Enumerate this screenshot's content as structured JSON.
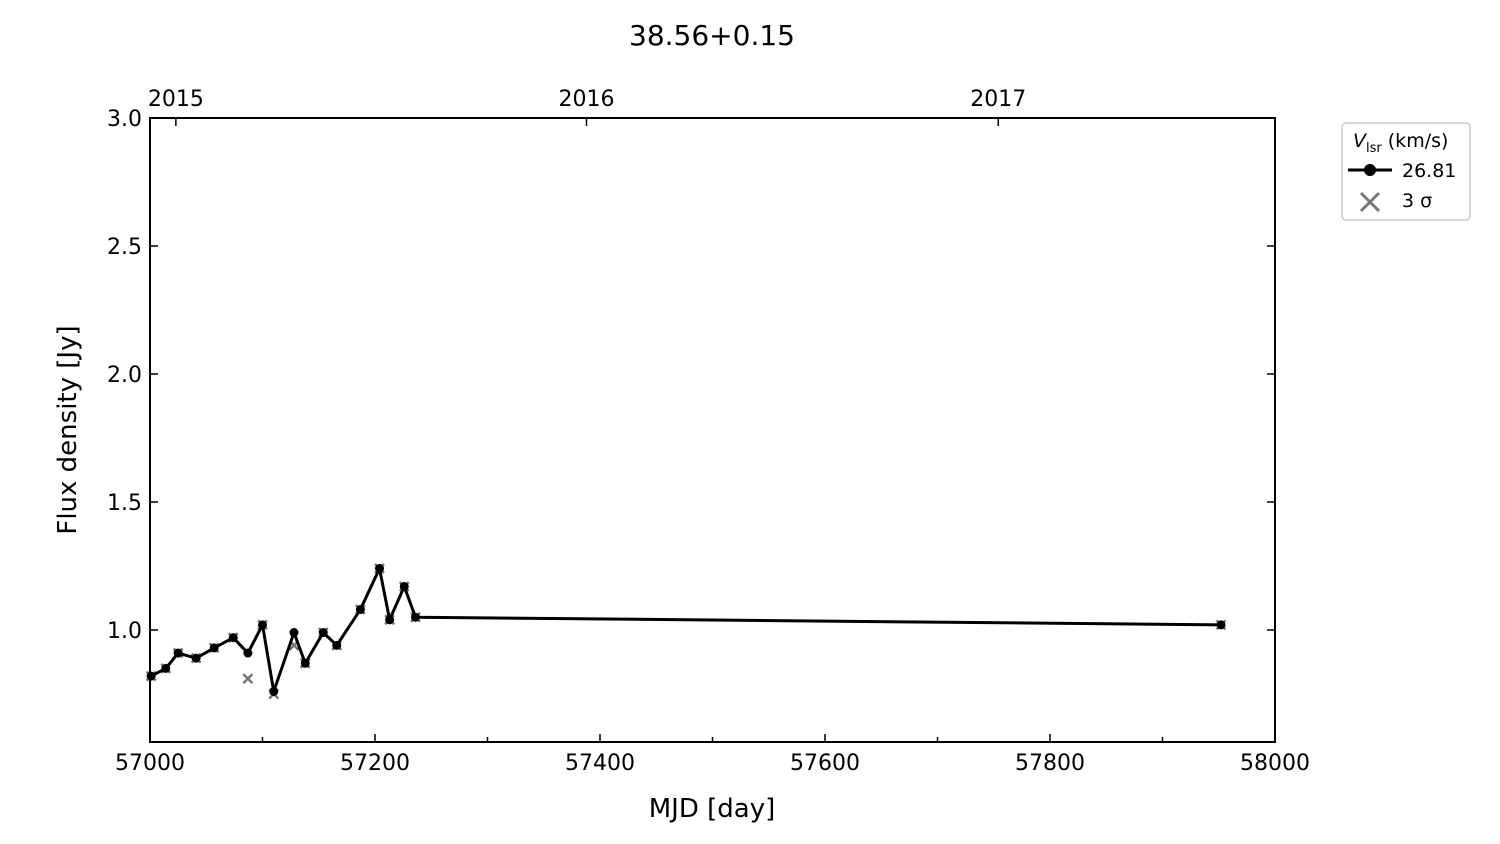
{
  "chart_data": {
    "type": "line",
    "title": "38.56+0.15",
    "xlabel": "MJD [day]",
    "ylabel": "Flux density [Jy]",
    "xlim": [
      57000,
      58000
    ],
    "ylim": [
      0.5625,
      3.0
    ],
    "xticks": [
      57000,
      57200,
      57400,
      57600,
      57800,
      58000
    ],
    "yticks": [
      1.0,
      1.5,
      2.0,
      2.5,
      3.0
    ],
    "ytick_labels": [
      "1.0",
      "1.5",
      "2.0",
      "2.5",
      "3.0"
    ],
    "top_axis": {
      "ticks": [
        {
          "label": "2015",
          "mjd": 57023
        },
        {
          "label": "2016",
          "mjd": 57388
        },
        {
          "label": "2017",
          "mjd": 57754
        }
      ]
    },
    "grid": false,
    "legend": {
      "title_main": "V",
      "title_sub": "lsr",
      "title_unit": " (km/s)",
      "placement": "outside-right-top"
    },
    "series": [
      {
        "name": "26.81",
        "color": "#000000",
        "marker": "circle",
        "x": [
          57001,
          57014,
          57025,
          57041,
          57057,
          57074,
          57087,
          57100,
          57110,
          57128,
          57138,
          57154,
          57166,
          57187,
          57204,
          57213,
          57226,
          57236,
          57952
        ],
        "y": [
          0.82,
          0.85,
          0.91,
          0.89,
          0.93,
          0.97,
          0.91,
          1.02,
          0.76,
          0.99,
          0.87,
          0.99,
          0.94,
          1.08,
          1.24,
          1.04,
          1.17,
          1.05,
          1.02
        ]
      },
      {
        "name": "3 σ",
        "color": "#777777",
        "marker": "x",
        "x": [
          57001,
          57014,
          57025,
          57041,
          57057,
          57074,
          57087,
          57100,
          57110,
          57128,
          57138,
          57154,
          57166,
          57187,
          57204,
          57213,
          57226,
          57236,
          57952
        ],
        "y": [
          0.82,
          0.85,
          0.91,
          0.89,
          0.93,
          0.97,
          0.81,
          1.02,
          0.75,
          0.94,
          0.87,
          0.99,
          0.94,
          1.08,
          1.24,
          1.04,
          1.17,
          1.05,
          1.02
        ]
      }
    ]
  }
}
